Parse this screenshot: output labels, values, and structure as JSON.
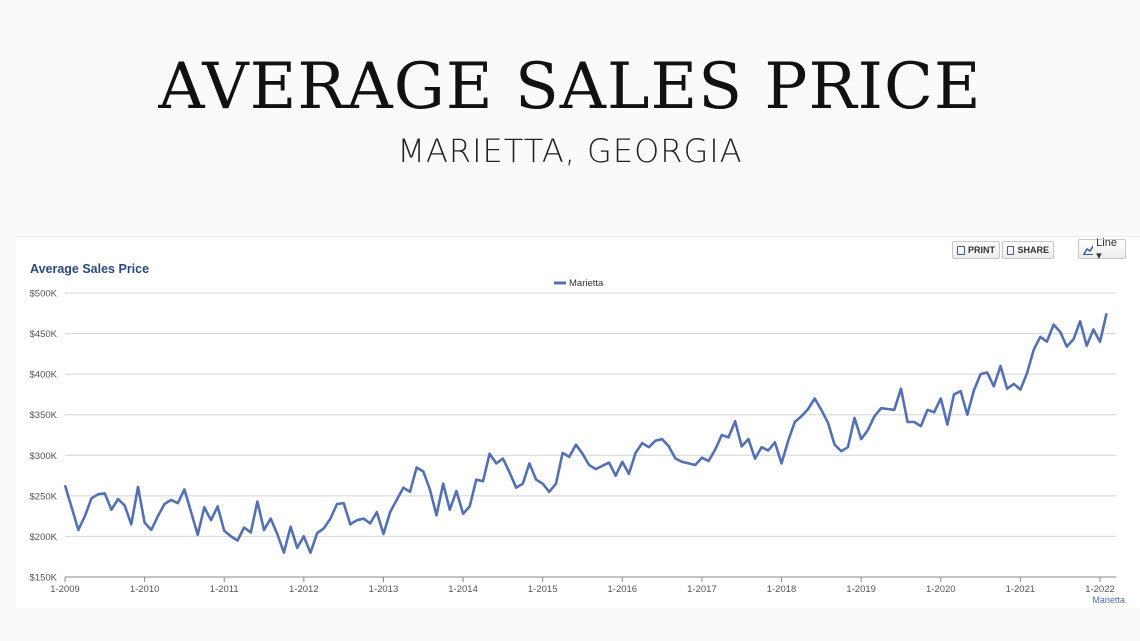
{
  "header": {
    "title": "AVERAGE SALES PRICE",
    "subtitle": "MARIETTA, GEORGIA"
  },
  "toolbar": {
    "print_label": "PRINT",
    "share_label": "SHARE",
    "chart_type_label": "Line ▾"
  },
  "colors": {
    "series": "#5470b5",
    "heading": "#2b4a7a",
    "grid": "#d4d4d4"
  },
  "chart_data": {
    "type": "line",
    "title": "Average Sales Price",
    "ylim": [
      150000,
      500000
    ],
    "yticks": [
      {
        "value": 150000,
        "label": "$150K"
      },
      {
        "value": 200000,
        "label": "$200K"
      },
      {
        "value": 250000,
        "label": "$250K"
      },
      {
        "value": 300000,
        "label": "$300K"
      },
      {
        "value": 350000,
        "label": "$350K"
      },
      {
        "value": 400000,
        "label": "$400K"
      },
      {
        "value": 450000,
        "label": "$450K"
      },
      {
        "value": 500000,
        "label": "$500K"
      }
    ],
    "xticks": [
      "1-2009",
      "1-2010",
      "1-2011",
      "1-2012",
      "1-2013",
      "1-2014",
      "1-2015",
      "1-2016",
      "1-2017",
      "1-2018",
      "1-2019",
      "1-2020",
      "1-2021",
      "1-2022"
    ],
    "grid": true,
    "legend_position": "top-center",
    "end_label": "Marietta",
    "series": [
      {
        "name": "Marietta",
        "start": "2009-01",
        "values": [
          263000,
          236000,
          208000,
          225000,
          247000,
          252000,
          253000,
          233000,
          246000,
          238000,
          215000,
          261000,
          217000,
          208000,
          225000,
          240000,
          245000,
          241000,
          258000,
          230000,
          202000,
          236000,
          220000,
          237000,
          207000,
          200000,
          195000,
          211000,
          205000,
          243000,
          208000,
          222000,
          203000,
          180000,
          212000,
          186000,
          200000,
          180000,
          204000,
          210000,
          222000,
          240000,
          241000,
          215000,
          220000,
          222000,
          216000,
          230000,
          203000,
          230000,
          245000,
          260000,
          255000,
          285000,
          280000,
          258000,
          226000,
          265000,
          233000,
          256000,
          228000,
          237000,
          270000,
          268000,
          302000,
          290000,
          296000,
          279000,
          260000,
          265000,
          290000,
          270000,
          265000,
          255000,
          265000,
          303000,
          298000,
          313000,
          302000,
          288000,
          283000,
          287000,
          291000,
          275000,
          292000,
          277000,
          303000,
          315000,
          310000,
          318000,
          320000,
          311000,
          296000,
          292000,
          290000,
          288000,
          297000,
          293000,
          307000,
          325000,
          322000,
          342000,
          311000,
          320000,
          296000,
          310000,
          306000,
          316000,
          290000,
          318000,
          341000,
          348000,
          357000,
          370000,
          356000,
          340000,
          313000,
          305000,
          310000,
          346000,
          320000,
          331000,
          348000,
          358000,
          357000,
          356000,
          382000,
          341000,
          341000,
          336000,
          356000,
          353000,
          370000,
          338000,
          375000,
          379000,
          350000,
          380000,
          400000,
          402000,
          385000,
          410000,
          382000,
          388000,
          381000,
          401000,
          430000,
          446000,
          440000,
          461000,
          452000,
          434000,
          443000,
          465000,
          435000,
          455000,
          440000,
          475000
        ]
      }
    ]
  }
}
